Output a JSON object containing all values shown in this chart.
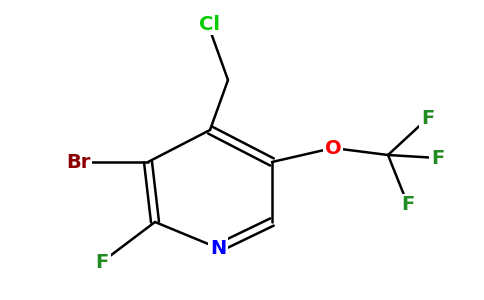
{
  "background_color": "#ffffff",
  "bond_color": "#000000",
  "atom_colors": {
    "Cl": "#00cc00",
    "Br": "#8b0000",
    "F": "#228b22",
    "O": "#ff0000",
    "N": "#0000ff",
    "C": "#000000"
  },
  "figsize": [
    4.84,
    3.0
  ],
  "dpi": 100,
  "lw": 1.8,
  "fontsize": 14
}
